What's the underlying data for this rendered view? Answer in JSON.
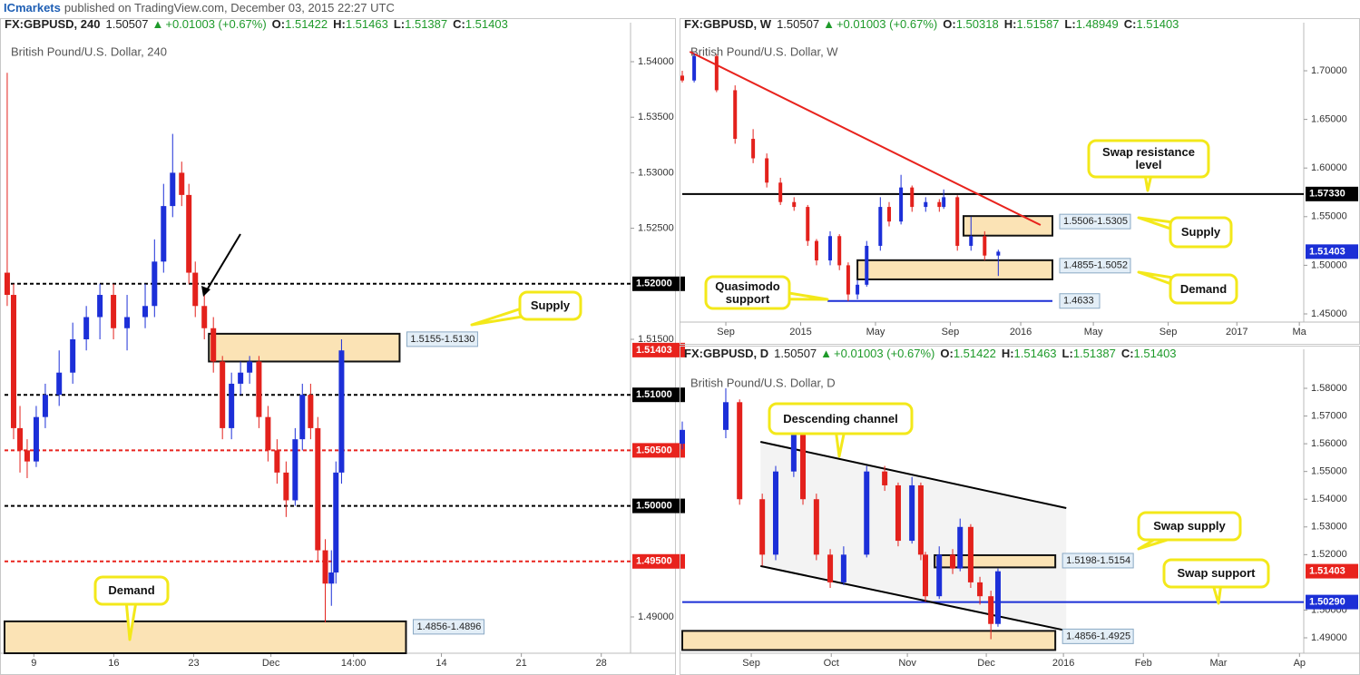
{
  "header": {
    "brand": "ICmarkets",
    "text": "published on TradingView.com, December 03, 2015 22:27 UTC"
  },
  "chart_data": [
    {
      "type": "candlestick",
      "symbol": "FX:GBPUSD, 240",
      "price": "1.50507",
      "arrow": "▲",
      "change": "+0.01003 (+0.67%)",
      "quote": [
        {
          "label": "O:",
          "value": "1.51422"
        },
        {
          "label": "H:",
          "value": "1.51463"
        },
        {
          "label": "L:",
          "value": "1.51387"
        },
        {
          "label": "C:",
          "value": "1.51403"
        }
      ],
      "title": "British Pound/U.S. Dollar, 240",
      "up_color": "#1c2fd8",
      "down_color": "#e3211c",
      "xlim": [
        0,
        235
      ],
      "xticks": [
        {
          "value": 11,
          "label": "9"
        },
        {
          "value": 41,
          "label": "16"
        },
        {
          "value": 71,
          "label": "23"
        },
        {
          "value": 100,
          "label": "Dec"
        },
        {
          "value": 131,
          "label": "14:00"
        },
        {
          "value": 164,
          "label": "14"
        },
        {
          "value": 194,
          "label": "21"
        },
        {
          "value": 224,
          "label": "28"
        }
      ],
      "ylim": [
        1.48673,
        1.54188
      ],
      "yticks": [
        {
          "value": 1.54,
          "label": "1.54000"
        },
        {
          "value": 1.535,
          "label": "1.53500"
        },
        {
          "value": 1.53,
          "label": "1.53000"
        },
        {
          "value": 1.525,
          "label": "1.52500"
        },
        {
          "value": 1.515,
          "label": "1.51500"
        },
        {
          "value": 1.49,
          "label": "1.49000"
        }
      ],
      "candles": [
        [
          1.0,
          1.521,
          1.539,
          1.518,
          1.519
        ],
        [
          3.4,
          1.519,
          1.52,
          1.506,
          1.507
        ],
        [
          5.8,
          1.507,
          1.509,
          1.503,
          1.505
        ],
        [
          8.5,
          1.505,
          1.506,
          1.5025,
          1.504
        ],
        [
          11.9,
          1.504,
          1.509,
          1.5035,
          1.508
        ],
        [
          15.3,
          1.508,
          1.511,
          1.507,
          1.51
        ],
        [
          20.5,
          1.51,
          1.514,
          1.509,
          1.512
        ],
        [
          25.6,
          1.512,
          1.5165,
          1.511,
          1.515
        ],
        [
          30.7,
          1.515,
          1.518,
          1.514,
          1.517
        ],
        [
          35.8,
          1.517,
          1.52,
          1.515,
          1.519
        ],
        [
          40.9,
          1.519,
          1.52,
          1.515,
          1.516
        ],
        [
          46.0,
          1.516,
          1.519,
          1.514,
          1.517
        ],
        [
          52.8,
          1.517,
          1.52,
          1.516,
          1.518
        ],
        [
          56.3,
          1.518,
          1.524,
          1.517,
          1.522
        ],
        [
          59.7,
          1.522,
          1.529,
          1.521,
          1.527
        ],
        [
          63.1,
          1.527,
          1.5335,
          1.526,
          1.53
        ],
        [
          66.5,
          1.53,
          1.531,
          1.527,
          1.528
        ],
        [
          69.2,
          1.528,
          1.529,
          1.52,
          1.521
        ],
        [
          71.6,
          1.521,
          1.522,
          1.517,
          1.518
        ],
        [
          75.0,
          1.518,
          1.519,
          1.515,
          1.516
        ],
        [
          78.4,
          1.516,
          1.517,
          1.512,
          1.513
        ],
        [
          81.8,
          1.513,
          1.5135,
          1.506,
          1.507
        ],
        [
          85.2,
          1.507,
          1.512,
          1.506,
          1.511
        ],
        [
          88.6,
          1.511,
          1.513,
          1.51,
          1.512
        ],
        [
          92.0,
          1.512,
          1.5135,
          1.511,
          1.513
        ],
        [
          95.5,
          1.513,
          1.5135,
          1.507,
          1.508
        ],
        [
          98.9,
          1.508,
          1.509,
          1.504,
          1.505
        ],
        [
          102.3,
          1.505,
          1.506,
          1.502,
          1.503
        ],
        [
          105.7,
          1.503,
          1.504,
          1.499,
          1.5005
        ],
        [
          109.1,
          1.5005,
          1.507,
          1.5,
          1.506
        ],
        [
          111.8,
          1.506,
          1.511,
          1.505,
          1.51
        ],
        [
          114.9,
          1.51,
          1.511,
          1.506,
          1.507
        ],
        [
          117.6,
          1.507,
          1.508,
          1.495,
          1.496
        ],
        [
          120.4,
          1.496,
          1.497,
          1.4895,
          1.493
        ],
        [
          122.7,
          1.493,
          1.496,
          1.491,
          1.494
        ],
        [
          124.4,
          1.494,
          1.504,
          1.493,
          1.503
        ],
        [
          126.5,
          1.503,
          1.515,
          1.502,
          1.514
        ]
      ],
      "zones": [
        {
          "top": 1.5155,
          "bottom": 1.513,
          "x": [
            76.7,
            148.3
          ],
          "label": "1.5155-1.5130"
        },
        {
          "top": 1.4896,
          "bottom": 1.4856,
          "x": [
            0,
            150.7
          ],
          "label": "1.4856-1.4896"
        }
      ],
      "levels": [
        {
          "value": 1.52,
          "label": "1.52000",
          "color": "#000000",
          "style": "dashed"
        },
        {
          "value": 1.51403,
          "label": "1.51403",
          "color": "#e8231d",
          "style": "none"
        },
        {
          "value": 1.51,
          "label": "1.51000",
          "color": "#000000",
          "style": "dashed"
        },
        {
          "value": 1.505,
          "label": "1.50500",
          "color": "#e8231d",
          "style": "dashed"
        },
        {
          "value": 1.5,
          "label": "1.50000",
          "color": "#000000",
          "style": "dashed"
        },
        {
          "value": 1.495,
          "label": "1.49500",
          "color": "#e8231d",
          "style": "dashed"
        }
      ],
      "lines": [],
      "callouts": [
        {
          "text": "Supply"
        },
        {
          "text": "Demand"
        }
      ]
    },
    {
      "type": "candlestick",
      "symbol": "FX:GBPUSD, W",
      "price": "1.50507",
      "arrow": "▲",
      "change": "+0.01003 (+0.67%)",
      "quote": [
        {
          "label": "O:",
          "value": "1.50318"
        },
        {
          "label": "H:",
          "value": "1.51587"
        },
        {
          "label": "L:",
          "value": "1.48949"
        },
        {
          "label": "C:",
          "value": "1.51403"
        }
      ],
      "title": "British Pound/U.S. Dollar, W",
      "up_color": "#1c2fd8",
      "down_color": "#e3211c",
      "xlim": [
        -9.9,
        131.3
      ],
      "xticks": [
        {
          "value": 0,
          "label": "Sep"
        },
        {
          "value": 17,
          "label": "2015"
        },
        {
          "value": 34,
          "label": "May"
        },
        {
          "value": 51,
          "label": "Sep"
        },
        {
          "value": 67,
          "label": "2016"
        },
        {
          "value": 83.5,
          "label": "May"
        },
        {
          "value": 100.5,
          "label": "Sep"
        },
        {
          "value": 116.1,
          "label": "2017"
        },
        {
          "value": 130.3,
          "label": "Ma"
        }
      ],
      "ylim": [
        1.4416,
        1.7308
      ],
      "yticks": [
        {
          "value": 1.7,
          "label": "1.70000"
        },
        {
          "value": 1.65,
          "label": "1.65000"
        },
        {
          "value": 1.6,
          "label": "1.60000"
        },
        {
          "value": 1.55,
          "label": "1.55000"
        },
        {
          "value": 1.5,
          "label": "1.50000"
        },
        {
          "value": 1.45,
          "label": "1.45000"
        }
      ],
      "candles": [
        [
          -9.9,
          1.695,
          1.7,
          1.688,
          1.69
        ],
        [
          -7.2,
          1.69,
          1.718,
          1.688,
          1.715
        ],
        [
          -2.1,
          1.715,
          1.717,
          1.678,
          1.68
        ],
        [
          2.1,
          1.68,
          1.685,
          1.625,
          1.63
        ],
        [
          6.2,
          1.63,
          1.64,
          1.605,
          1.61
        ],
        [
          9.3,
          1.61,
          1.615,
          1.58,
          1.585
        ],
        [
          12.4,
          1.585,
          1.59,
          1.562,
          1.565
        ],
        [
          15.5,
          1.565,
          1.57,
          1.556,
          1.56
        ],
        [
          18.6,
          1.56,
          1.562,
          1.52,
          1.525
        ],
        [
          20.6,
          1.525,
          1.527,
          1.5,
          1.505
        ],
        [
          23.7,
          1.505,
          1.535,
          1.5,
          1.53
        ],
        [
          25.8,
          1.53,
          1.532,
          1.495,
          1.5
        ],
        [
          27.8,
          1.5,
          1.503,
          1.463,
          1.47
        ],
        [
          29.9,
          1.47,
          1.485,
          1.465,
          1.48
        ],
        [
          32.0,
          1.48,
          1.525,
          1.478,
          1.52
        ],
        [
          35.1,
          1.52,
          1.57,
          1.515,
          1.56
        ],
        [
          37.1,
          1.56,
          1.565,
          1.54,
          1.545
        ],
        [
          39.8,
          1.545,
          1.593,
          1.542,
          1.58
        ],
        [
          42.3,
          1.58,
          1.582,
          1.555,
          1.56
        ],
        [
          45.4,
          1.56,
          1.57,
          1.555,
          1.565
        ],
        [
          48.5,
          1.565,
          1.568,
          1.555,
          1.56
        ],
        [
          49.5,
          1.56,
          1.578,
          1.558,
          1.57
        ],
        [
          52.6,
          1.57,
          1.572,
          1.515,
          1.52
        ],
        [
          55.7,
          1.52,
          1.55,
          1.515,
          1.53
        ],
        [
          58.8,
          1.53,
          1.535,
          1.505,
          1.51
        ],
        [
          61.9,
          1.51,
          1.516,
          1.489,
          1.514
        ]
      ],
      "zones": [
        {
          "top": 1.5506,
          "bottom": 1.5305,
          "x": [
            54,
            74.2
          ],
          "label": "1.5506-1.5305"
        },
        {
          "top": 1.5052,
          "bottom": 1.4855,
          "x": [
            29.9,
            74.2
          ],
          "label": "1.4855-1.5052"
        }
      ],
      "levels": [
        {
          "value": 1.5733,
          "label": "1.57330",
          "color": "#000000",
          "style": "solid"
        },
        {
          "value": 1.51403,
          "label": "1.51403",
          "color": "#1b2fd6",
          "style": "none"
        },
        {
          "value": 1.4633,
          "label": "1.4633",
          "color": "#1b2fd6",
          "style": "solid",
          "x": [
            23.1,
            74.2
          ],
          "label_position": "inline"
        }
      ],
      "lines": [
        {
          "x": [
            -8.2,
            71.5
          ],
          "y": [
            1.7196,
            1.5414
          ],
          "color": "#e8231d"
        }
      ],
      "callouts": [
        {
          "text": "Swap resistance level"
        },
        {
          "text": "Supply"
        },
        {
          "text": "Demand"
        },
        {
          "text": "Quasimodo support"
        }
      ]
    },
    {
      "type": "candlestick",
      "symbol": "FX:GBPUSD, D",
      "price": "1.50507",
      "arrow": "▲",
      "change": "+0.01003 (+0.67%)",
      "quote": [
        {
          "label": "O:",
          "value": "1.51422"
        },
        {
          "label": "H:",
          "value": "1.51463"
        },
        {
          "label": "L:",
          "value": "1.51387"
        },
        {
          "label": "C:",
          "value": "1.51403"
        }
      ],
      "title": "British Pound/U.S. Dollar, D",
      "up_color": "#1c2fd8",
      "down_color": "#e3211c",
      "xlim": [
        0,
        175.6
      ],
      "xticks": [
        {
          "value": 19.5,
          "label": "Sep"
        },
        {
          "value": 42.1,
          "label": "Oct"
        },
        {
          "value": 63.6,
          "label": "Nov"
        },
        {
          "value": 85.9,
          "label": "Dec"
        },
        {
          "value": 107.7,
          "label": "2016"
        },
        {
          "value": 130.3,
          "label": "Feb"
        },
        {
          "value": 151.5,
          "label": "Mar"
        },
        {
          "value": 174.4,
          "label": "Ap"
        }
      ],
      "ylim": [
        1.48444,
        1.58753
      ],
      "yticks": [
        {
          "value": 1.58,
          "label": "1.58000"
        },
        {
          "value": 1.57,
          "label": "1.57000"
        },
        {
          "value": 1.56,
          "label": "1.56000"
        },
        {
          "value": 1.55,
          "label": "1.55000"
        },
        {
          "value": 1.54,
          "label": "1.54000"
        },
        {
          "value": 1.53,
          "label": "1.53000"
        },
        {
          "value": 1.52,
          "label": "1.52000"
        },
        {
          "value": 1.5,
          "label": "1.50000"
        },
        {
          "value": 1.49,
          "label": "1.49000"
        }
      ],
      "candles": [
        [
          0,
          1.56,
          1.568,
          1.558,
          1.565
        ],
        [
          12.3,
          1.565,
          1.58,
          1.562,
          1.575
        ],
        [
          16.2,
          1.575,
          1.576,
          1.538,
          1.54
        ],
        [
          22.6,
          1.54,
          1.542,
          1.516,
          1.52
        ],
        [
          26.4,
          1.52,
          1.552,
          1.518,
          1.55
        ],
        [
          31.5,
          1.55,
          1.566,
          1.548,
          1.565
        ],
        [
          34.1,
          1.565,
          1.566,
          1.538,
          1.54
        ],
        [
          37.9,
          1.54,
          1.542,
          1.518,
          1.52
        ],
        [
          41.8,
          1.52,
          1.522,
          1.508,
          1.51
        ],
        [
          45.6,
          1.51,
          1.523,
          1.509,
          1.52
        ],
        [
          52.1,
          1.52,
          1.552,
          1.519,
          1.55
        ],
        [
          57.2,
          1.55,
          1.552,
          1.543,
          1.545
        ],
        [
          61.0,
          1.545,
          1.546,
          1.523,
          1.525
        ],
        [
          64.9,
          1.525,
          1.548,
          1.524,
          1.545
        ],
        [
          67.4,
          1.545,
          1.546,
          1.518,
          1.52
        ],
        [
          68.7,
          1.52,
          1.521,
          1.503,
          1.505
        ],
        [
          72.6,
          1.505,
          1.523,
          1.504,
          1.52
        ],
        [
          76.4,
          1.52,
          1.522,
          1.513,
          1.515
        ],
        [
          78.5,
          1.515,
          1.533,
          1.514,
          1.53
        ],
        [
          81.5,
          1.53,
          1.531,
          1.508,
          1.51
        ],
        [
          84.1,
          1.51,
          1.512,
          1.502,
          1.505
        ],
        [
          87.2,
          1.505,
          1.507,
          1.4895,
          1.495
        ],
        [
          89.2,
          1.495,
          1.515,
          1.494,
          1.514
        ]
      ],
      "zones": [
        {
          "top": 1.5198,
          "bottom": 1.5154,
          "x": [
            71.3,
            105.4
          ],
          "label": "1.5198-1.5154"
        },
        {
          "top": 1.4925,
          "bottom": 1.4856,
          "x": [
            0,
            105.4
          ],
          "label": "1.4856-1.4925"
        }
      ],
      "levels": [
        {
          "value": 1.51403,
          "label": "1.51403",
          "color": "#e8231d",
          "style": "none"
        },
        {
          "value": 1.5029,
          "label": "1.50290",
          "color": "#1b2fd6",
          "style": "solid"
        }
      ],
      "lines": [
        {
          "x": [
            22.1,
            108.5
          ],
          "y": [
            1.5607,
            1.5368
          ],
          "color": "#000000"
        },
        {
          "x": [
            22.1,
            108.5
          ],
          "y": [
            1.5159,
            1.4926
          ],
          "color": "#000000"
        }
      ],
      "channel_fill": "#f3f3f3",
      "callouts": [
        {
          "text": "Descending channel"
        },
        {
          "text": "Swap supply"
        },
        {
          "text": "Swap support"
        }
      ]
    }
  ]
}
